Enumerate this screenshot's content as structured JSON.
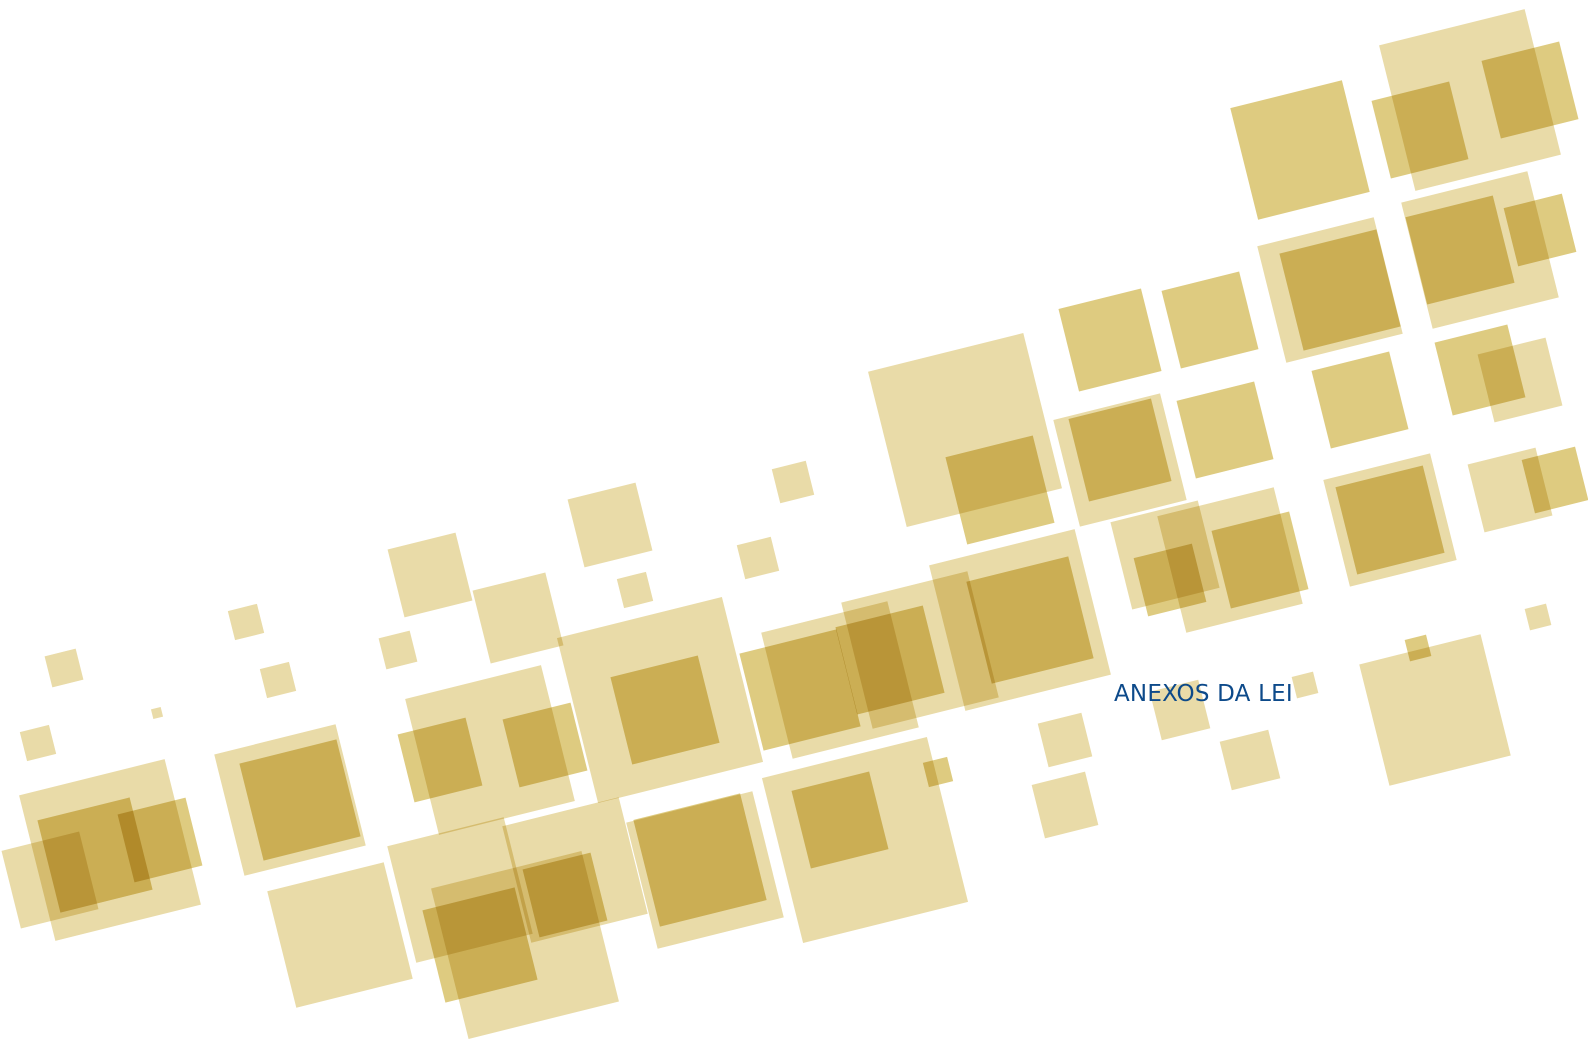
{
  "page": {
    "title": "ANEXOS DA LEI"
  },
  "colors": {
    "square_light": "#e8d9a3",
    "square_dark": "#d8c26a",
    "title": "#0d4a8a"
  }
}
